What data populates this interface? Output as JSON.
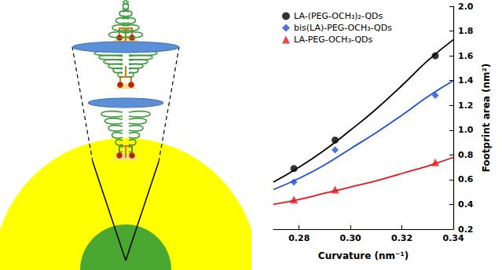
{
  "chart_data": {
    "type": "scatter",
    "x_label": "Curvature (nm⁻¹)",
    "y_label": "Footprint area (nm²)",
    "xlim": [
      0.27,
      0.34
    ],
    "xticks": [
      0.28,
      {
        "value": 0.3,
        "label": "0.30"
      },
      0.32,
      0.34
    ],
    "ylim": [
      0.2,
      2.0
    ],
    "yticks": [
      0.2,
      0.4,
      0.6,
      0.8,
      {
        "value": 1.0,
        "label": "1.0"
      },
      1.2,
      1.4,
      1.6,
      1.8,
      {
        "value": 2.0,
        "label": "2.0"
      }
    ],
    "grid": false,
    "legend": "upper left",
    "series": [
      {
        "name": "LA-(PEG-OCH₃)₂-QDs",
        "color": "#000000",
        "marker": "circle",
        "x": [
          0.278,
          0.294,
          0.333
        ],
        "values": [
          0.69,
          0.92,
          1.6
        ],
        "fit": {
          "x": [
            0.27,
            0.28,
            0.29,
            0.3,
            0.31,
            0.32,
            0.33,
            0.34
          ],
          "values": [
            0.58,
            0.7,
            0.84,
            1.0,
            1.17,
            1.36,
            1.56,
            1.73
          ]
        }
      },
      {
        "name": "bis(LA)-PEG-OCH₃-QDs",
        "color": "#1f4fe0",
        "marker": "diamond",
        "x": [
          0.278,
          0.294,
          0.333
        ],
        "values": [
          0.58,
          0.84,
          1.28
        ],
        "fit": {
          "x": [
            0.27,
            0.28,
            0.29,
            0.3,
            0.31,
            0.32,
            0.33,
            0.34
          ],
          "values": [
            0.52,
            0.61,
            0.72,
            0.85,
            0.98,
            1.12,
            1.27,
            1.4
          ]
        }
      },
      {
        "name": "LA-PEG-OCH₃-QDs",
        "color": "#e8141b",
        "marker": "triangle",
        "x": [
          0.278,
          0.294,
          0.333
        ],
        "values": [
          0.44,
          0.52,
          0.74
        ],
        "fit": {
          "x": [
            0.27,
            0.28,
            0.29,
            0.3,
            0.31,
            0.32,
            0.33,
            0.34
          ],
          "values": [
            0.4,
            0.44,
            0.49,
            0.54,
            0.59,
            0.65,
            0.71,
            0.78
          ]
        }
      }
    ]
  }
}
